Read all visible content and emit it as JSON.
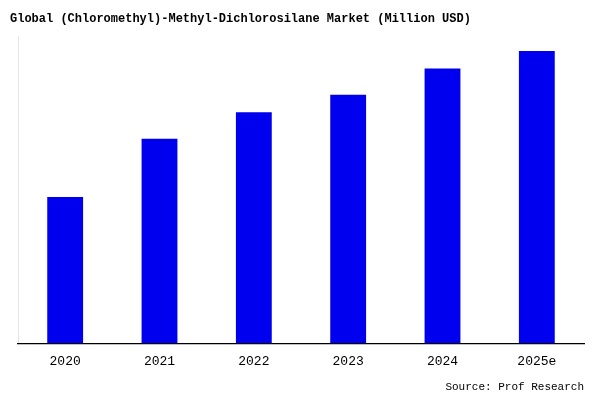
{
  "chart_data": {
    "type": "bar",
    "title": "Global (Chloromethyl)-Methyl-Dichlorosilane Market (Million USD)",
    "categories": [
      "2020",
      "2021",
      "2022",
      "2023",
      "2024",
      "2025e"
    ],
    "values": [
      100,
      140,
      158,
      170,
      188,
      200
    ],
    "color": "#0000EE",
    "ylim": [
      0,
      210
    ],
    "grid": false,
    "tick_labels": "x",
    "annotations": [
      "Source: Prof Research"
    ]
  }
}
